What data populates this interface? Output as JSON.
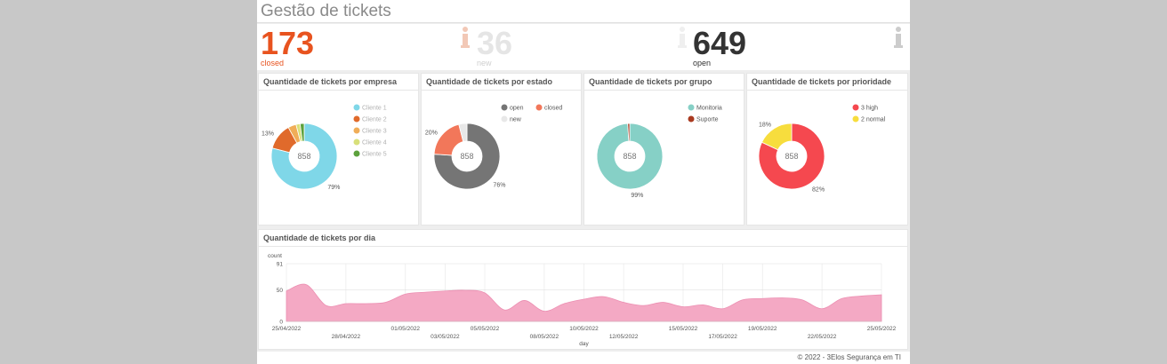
{
  "header": {
    "title": "Gestão de tickets"
  },
  "kpis": [
    {
      "value": "173",
      "label": "closed",
      "color": "#e8531f",
      "label_color": "#e8531f"
    },
    {
      "value": "36",
      "label": "new",
      "color": "#e5e5e5",
      "label_color": "#d0d0d0"
    },
    {
      "value": "649",
      "label": "open",
      "color": "#333333",
      "label_color": "#333333"
    }
  ],
  "panels": {
    "empresa": {
      "title": "Quantidade de tickets por empresa"
    },
    "estado": {
      "title": "Quantidade de tickets por estado"
    },
    "grupo": {
      "title": "Quantidade de tickets por grupo"
    },
    "prioridade": {
      "title": "Quantidade de tickets por prioridade"
    },
    "dia": {
      "title": "Quantidade de tickets por dia"
    }
  },
  "chart_data": [
    {
      "type": "pie",
      "center_label": "858",
      "slices": [
        {
          "name": "Cliente 1",
          "value": 79,
          "color": "#7fd7e8",
          "label": "79%"
        },
        {
          "name": "Cliente 2",
          "value": 13,
          "color": "#e06a2b",
          "label": "13%"
        },
        {
          "name": "Cliente 3",
          "value": 4,
          "color": "#f0ad58",
          "label": ""
        },
        {
          "name": "Cliente 4",
          "value": 2,
          "color": "#d8e07a",
          "label": ""
        },
        {
          "name": "Cliente 5",
          "value": 2,
          "color": "#5ca13c",
          "label": ""
        }
      ]
    },
    {
      "type": "pie",
      "center_label": "858",
      "slices": [
        {
          "name": "open",
          "value": 76,
          "color": "#757575",
          "label": "76%"
        },
        {
          "name": "closed",
          "value": 20,
          "color": "#f2775a",
          "label": "20%"
        },
        {
          "name": "new",
          "value": 4,
          "color": "#e8e8e8",
          "label": ""
        }
      ]
    },
    {
      "type": "pie",
      "center_label": "858",
      "slices": [
        {
          "name": "Monitoria",
          "value": 99,
          "color": "#86d0c6",
          "label": "99%"
        },
        {
          "name": "Suporte",
          "value": 1,
          "color": "#a93a20",
          "label": ""
        }
      ]
    },
    {
      "type": "pie",
      "center_label": "858",
      "slices": [
        {
          "name": "3 high",
          "value": 82,
          "color": "#f5484f",
          "label": "82%"
        },
        {
          "name": "2 normal",
          "value": 18,
          "color": "#f7dd3d",
          "label": "18%"
        }
      ]
    },
    {
      "type": "area",
      "xlabel": "day",
      "ylabel": "count",
      "yticks": [
        0,
        50,
        91
      ],
      "ylim": [
        0,
        91
      ],
      "x_tick_labels_row1": [
        "25/04/2022",
        "01/05/2022",
        "05/05/2022",
        "10/05/2022",
        "15/05/2022",
        "19/05/2022",
        "25/05/2022"
      ],
      "x_tick_labels_row2": [
        "28/04/2022",
        "03/05/2022",
        "08/05/2022",
        "12/05/2022",
        "17/05/2022",
        "22/05/2022"
      ],
      "all_days": [
        "25/04",
        "26/04",
        "27/04",
        "28/04",
        "29/04",
        "30/04",
        "01/05",
        "02/05",
        "03/05",
        "04/05",
        "05/05",
        "06/05",
        "07/05",
        "08/05",
        "09/05",
        "10/05",
        "11/05",
        "12/05",
        "13/05",
        "14/05",
        "15/05",
        "16/05",
        "17/05",
        "18/05",
        "19/05",
        "20/05",
        "21/05",
        "22/05",
        "23/05",
        "24/05",
        "25/05"
      ],
      "values": [
        48,
        58,
        25,
        28,
        28,
        30,
        43,
        46,
        48,
        49,
        45,
        18,
        33,
        16,
        28,
        35,
        39,
        30,
        25,
        30,
        23,
        26,
        20,
        34,
        36,
        37,
        34,
        20,
        36,
        40,
        42
      ],
      "color": "#f4a9c4"
    }
  ],
  "footer": {
    "text": "© 2022 - 3Elos Segurança em TI"
  }
}
